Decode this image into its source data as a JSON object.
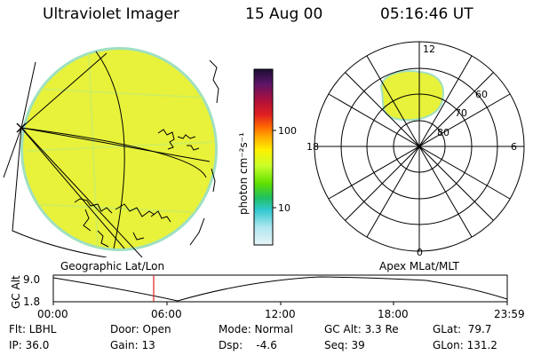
{
  "header": {
    "instrument": "Ultraviolet Imager",
    "date": "15 Aug 00",
    "time": "05:16:46 UT"
  },
  "colorbar": {
    "unit_label": "photon cm⁻²s⁻¹",
    "ticks": [
      "100",
      "10"
    ],
    "colors": [
      "#1a1030",
      "#5a1468",
      "#b0103a",
      "#e02020",
      "#ff6a00",
      "#ffb000",
      "#fff000",
      "#c8ff2a",
      "#60e000",
      "#20c060",
      "#30c8d0",
      "#b0e8f0",
      "#e8f4f8"
    ]
  },
  "polar": {
    "mlt_labels": [
      "12",
      "18",
      "6",
      "0"
    ],
    "lat_labels": [
      "60",
      "70",
      "80"
    ]
  },
  "timeline": {
    "left_label": "Geographic Lat/Lon",
    "right_label": "Apex MLat/MLT",
    "axis_title": "GC Alt",
    "y_ticks": [
      "9.0",
      "1.8"
    ],
    "x_ticks": [
      "00:00",
      "06:00",
      "12:00",
      "18:00",
      "23:59"
    ]
  },
  "info": {
    "flt": "Flt: LBHL",
    "ip": "IP: 36.0",
    "door": "Door: Open",
    "gain": "Gain: 13",
    "mode": "Mode: Normal",
    "dsp": "Dsp:    -4.6",
    "gc_alt": "GC Alt: 3.3 Re",
    "seq": "Seq: 39",
    "glat": "GLat:  79.7",
    "glon": "GLon: 131.2"
  },
  "colors": {
    "aurora": "#e8f23a",
    "aurora_edge": "#c8ee6a",
    "rim": "#6fd0e0",
    "marker": "#e02020"
  }
}
